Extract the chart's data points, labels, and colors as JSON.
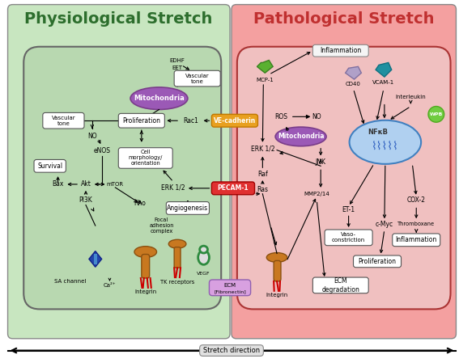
{
  "fig_width": 5.67,
  "fig_height": 4.49,
  "fig_bg": "#ffffff",
  "left_bg": "#c8e6c0",
  "right_bg": "#f4a0a0",
  "left_cell_bg": "#b8d8b0",
  "right_cell_bg": "#f0c0c0",
  "left_title": "Physiological Stretch",
  "right_title": "Pathological Stretch",
  "left_title_color": "#2d6e2d",
  "right_title_color": "#c03030",
  "bottom_label": "Stretch direction",
  "mito_color": "#9b59b6",
  "mito_text_color": "#ffffff",
  "ve_cadherin_color": "#e8a020",
  "pecam_color": "#e03030",
  "ecm_color": "#d8a0e0",
  "nfkb_cell_color": "#b0d0f0",
  "inflammation_box_color": "#f0f0f0"
}
